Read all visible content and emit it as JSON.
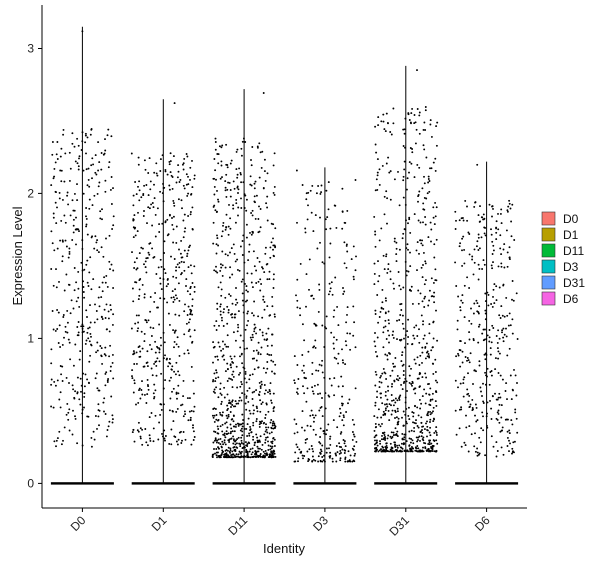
{
  "chart_data": {
    "type": "violin-jitter",
    "title": "",
    "xlabel": "Identity",
    "ylabel": "Expression Level",
    "ylim": [
      -0.17,
      3.3
    ],
    "yticks": [
      0,
      1,
      2,
      3
    ],
    "grid": false,
    "legend_position": "right",
    "categories": [
      "D0",
      "D1",
      "D11",
      "D3",
      "D31",
      "D6"
    ],
    "colors": [
      "#F8766D",
      "#B79F00",
      "#00BA38",
      "#00BFC4",
      "#619CFF",
      "#F564E3"
    ],
    "groups": [
      {
        "name": "D0",
        "max": 3.15,
        "nonzero_points": 400,
        "dist": "uniform",
        "low": 0.25,
        "high": 2.45
      },
      {
        "name": "D1",
        "max": 2.65,
        "nonzero_points": 480,
        "dist": "uniform",
        "low": 0.25,
        "high": 2.28
      },
      {
        "name": "D11",
        "max": 2.72,
        "nonzero_points": 900,
        "dist": "skewed",
        "low": 0.18,
        "high": 2.4
      },
      {
        "name": "D3",
        "max": 2.18,
        "nonzero_points": 330,
        "dist": "skewed",
        "low": 0.15,
        "high": 2.1
      },
      {
        "name": "D31",
        "max": 2.88,
        "nonzero_points": 780,
        "dist": "skewed",
        "low": 0.22,
        "high": 2.6
      },
      {
        "name": "D6",
        "max": 2.22,
        "nonzero_points": 380,
        "dist": "uniform",
        "low": 0.18,
        "high": 1.95
      }
    ]
  }
}
